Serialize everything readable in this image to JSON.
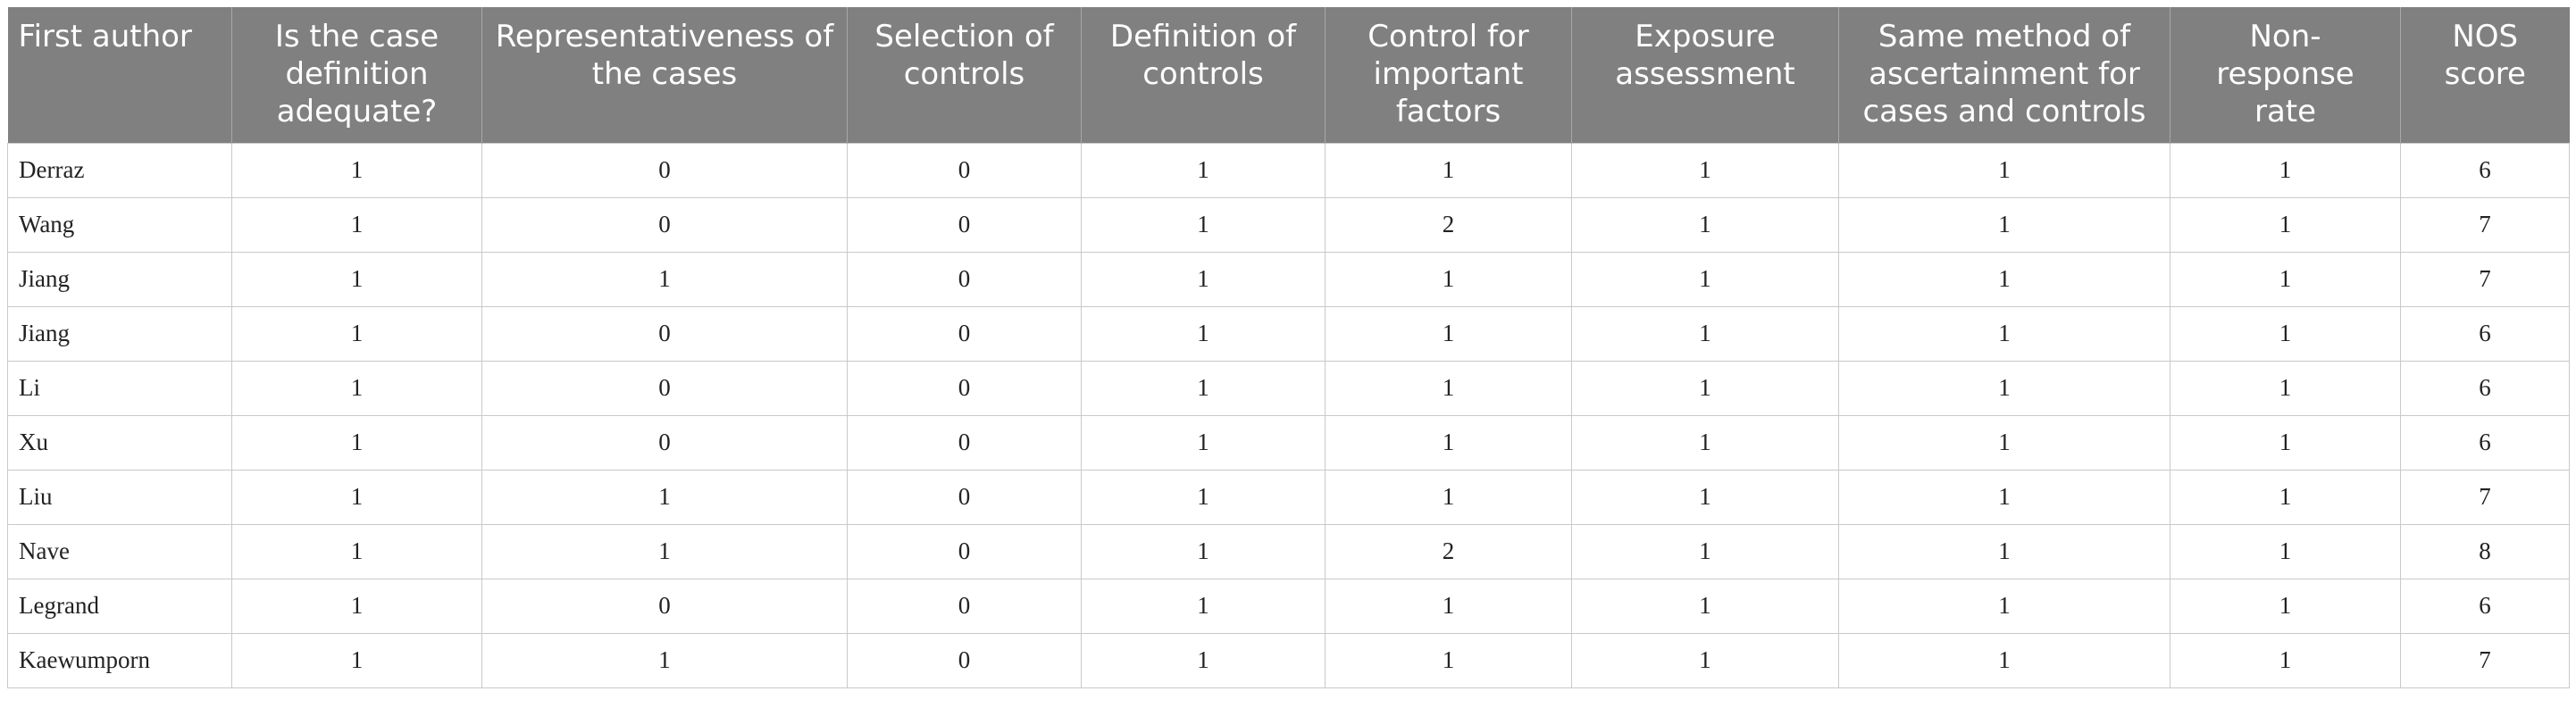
{
  "table": {
    "headers": [
      "First author",
      "Is the case definition adequate?",
      "Representativeness of the cases",
      "Selection of controls",
      "Definition of controls",
      "Control for important factors",
      "Exposure assessment",
      "Same method of ascertainment for cases and controls",
      "Non-response rate",
      "NOS score"
    ],
    "rows": [
      [
        "Derraz",
        "1",
        "0",
        "0",
        "1",
        "1",
        "1",
        "1",
        "1",
        "6"
      ],
      [
        "Wang",
        "1",
        "0",
        "0",
        "1",
        "2",
        "1",
        "1",
        "1",
        "7"
      ],
      [
        "Jiang",
        "1",
        "1",
        "0",
        "1",
        "1",
        "1",
        "1",
        "1",
        "7"
      ],
      [
        "Jiang",
        "1",
        "0",
        "0",
        "1",
        "1",
        "1",
        "1",
        "1",
        "6"
      ],
      [
        "Li",
        "1",
        "0",
        "0",
        "1",
        "1",
        "1",
        "1",
        "1",
        "6"
      ],
      [
        "Xu",
        "1",
        "0",
        "0",
        "1",
        "1",
        "1",
        "1",
        "1",
        "6"
      ],
      [
        "Liu",
        "1",
        "1",
        "0",
        "1",
        "1",
        "1",
        "1",
        "1",
        "7"
      ],
      [
        "Nave",
        "1",
        "1",
        "0",
        "1",
        "2",
        "1",
        "1",
        "1",
        "8"
      ],
      [
        "Legrand",
        "1",
        "0",
        "0",
        "1",
        "1",
        "1",
        "1",
        "1",
        "6"
      ],
      [
        "Kaewumporn",
        "1",
        "1",
        "0",
        "1",
        "1",
        "1",
        "1",
        "1",
        "7"
      ]
    ]
  }
}
